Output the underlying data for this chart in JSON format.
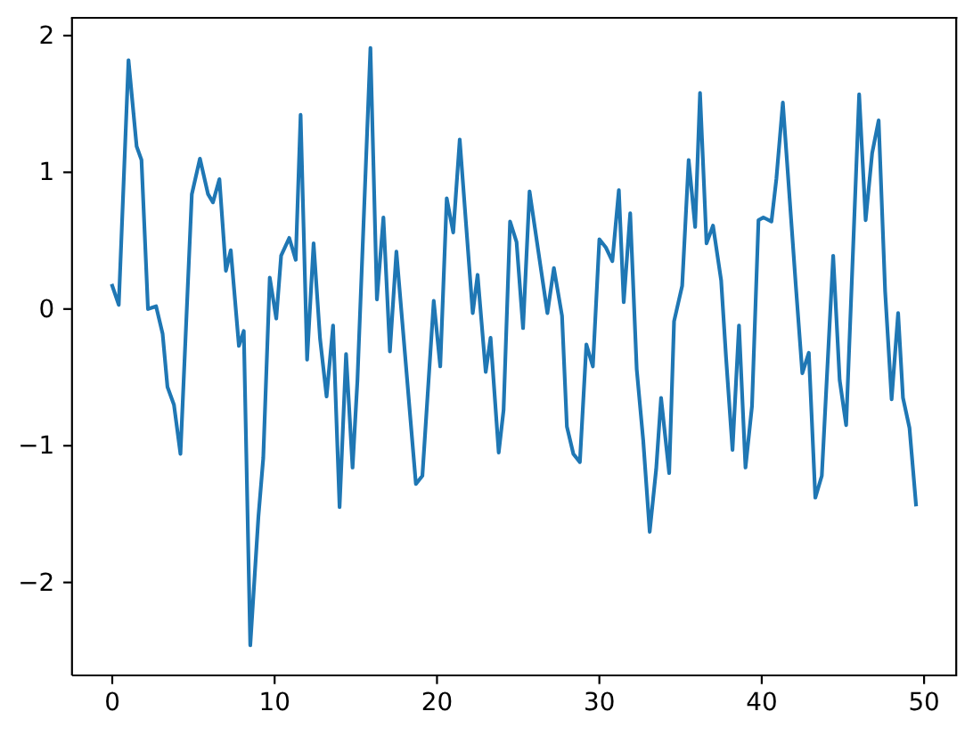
{
  "chart_data": {
    "type": "line",
    "x": [
      0,
      0.4,
      1.0,
      1.5,
      1.8,
      2.2,
      2.7,
      3.1,
      3.4,
      3.8,
      4.2,
      4.9,
      5.4,
      5.9,
      6.2,
      6.6,
      7.0,
      7.3,
      7.8,
      8.1,
      8.5,
      9.0,
      9.3,
      9.7,
      10.1,
      10.4,
      10.9,
      11.3,
      11.6,
      12.0,
      12.4,
      12.8,
      13.2,
      13.6,
      14.0,
      14.4,
      14.8,
      15.1,
      15.9,
      16.3,
      16.7,
      17.1,
      17.5,
      18.7,
      19.1,
      19.8,
      20.2,
      20.6,
      21.0,
      21.4,
      22.2,
      22.5,
      23.0,
      23.3,
      23.8,
      24.1,
      24.5,
      24.9,
      25.3,
      25.7,
      26.8,
      27.2,
      27.7,
      28.0,
      28.4,
      28.8,
      29.2,
      29.6,
      30.0,
      30.4,
      30.8,
      31.2,
      31.5,
      31.9,
      32.3,
      32.7,
      33.1,
      33.5,
      33.8,
      34.3,
      34.6,
      35.1,
      35.5,
      35.9,
      36.2,
      36.6,
      37.0,
      37.5,
      37.8,
      38.2,
      38.6,
      39.0,
      39.4,
      39.8,
      40.1,
      40.6,
      40.9,
      41.3,
      42.1,
      42.5,
      42.9,
      43.3,
      43.7,
      44.4,
      44.8,
      45.2,
      46.0,
      46.4,
      46.8,
      47.2,
      47.6,
      48.0,
      48.4,
      48.7,
      49.1,
      49.5
    ],
    "series": [
      {
        "color": "#1f77b4",
        "values": [
          0.17,
          0.03,
          1.82,
          1.19,
          1.09,
          0.0,
          0.02,
          -0.18,
          -0.57,
          -0.7,
          -1.06,
          0.84,
          1.1,
          0.84,
          0.78,
          0.95,
          0.28,
          0.43,
          -0.27,
          -0.16,
          -2.46,
          -1.52,
          -1.09,
          0.23,
          -0.07,
          0.39,
          0.52,
          0.36,
          1.42,
          -0.37,
          0.48,
          -0.22,
          -0.64,
          -0.12,
          -1.45,
          -0.33,
          -1.16,
          -0.52,
          1.91,
          0.07,
          0.67,
          -0.31,
          0.42,
          -1.28,
          -1.22,
          0.06,
          -0.42,
          0.81,
          0.56,
          1.24,
          -0.03,
          0.25,
          -0.46,
          -0.21,
          -1.05,
          -0.74,
          0.64,
          0.49,
          -0.14,
          0.86,
          -0.03,
          0.3,
          -0.05,
          -0.86,
          -1.06,
          -1.12,
          -0.26,
          -0.42,
          0.51,
          0.45,
          0.35,
          0.87,
          0.05,
          0.7,
          -0.44,
          -0.96,
          -1.63,
          -1.17,
          -0.65,
          -1.2,
          -0.09,
          0.17,
          1.09,
          0.6,
          1.58,
          0.48,
          0.61,
          0.21,
          -0.35,
          -1.03,
          -0.12,
          -1.16,
          -0.71,
          0.65,
          0.67,
          0.64,
          0.95,
          1.51,
          0.17,
          -0.47,
          -0.32,
          -1.38,
          -1.22,
          0.39,
          -0.52,
          -0.85,
          1.57,
          0.65,
          1.14,
          1.38,
          0.13,
          -0.66,
          -0.03,
          -0.65,
          -0.87,
          -1.43
        ]
      }
    ],
    "xlim": [
      -2.48,
      51.98
    ],
    "ylim": [
      -2.68,
      2.13
    ],
    "xticks": [
      0,
      10,
      20,
      30,
      40,
      50
    ],
    "yticks": [
      -2,
      -1,
      0,
      1,
      2
    ]
  }
}
